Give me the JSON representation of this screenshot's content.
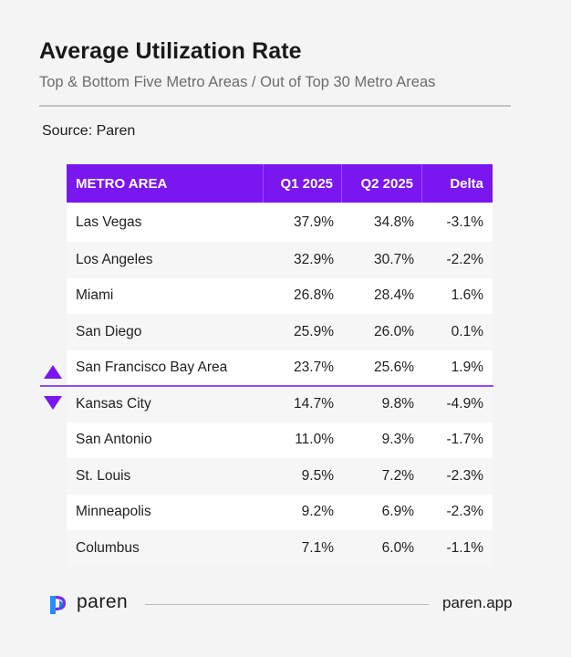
{
  "header": {
    "title": "Average Utilization Rate",
    "subtitle": "Top & Bottom Five Metro Areas / Out of Top 30 Metro Areas",
    "source": "Source: Paren"
  },
  "colors": {
    "accent": "#7a16f0",
    "header_text": "#ffffff",
    "row_alt": "#ffffff",
    "row_plain": "#f6f6f6"
  },
  "icons": {
    "top_marker": "triangle-up-icon",
    "bottom_marker": "triangle-down-icon",
    "brand": "paren-logo-icon"
  },
  "chart_data": {
    "type": "table",
    "columns": [
      "METRO AREA",
      "Q1 2025",
      "Q2 2025",
      "Delta"
    ],
    "rows": [
      [
        "Las Vegas",
        "37.9%",
        "34.8%",
        "-3.1%"
      ],
      [
        "Los Angeles",
        "32.9%",
        "30.7%",
        "-2.2%"
      ],
      [
        "Miami",
        "26.8%",
        "28.4%",
        "1.6%"
      ],
      [
        "San Diego",
        "25.9%",
        "26.0%",
        "0.1%"
      ],
      [
        "San Francisco Bay Area",
        "23.7%",
        "25.6%",
        "1.9%"
      ],
      [
        "Kansas City",
        "14.7%",
        "9.8%",
        "-4.9%"
      ],
      [
        "San Antonio",
        "11.0%",
        "9.3%",
        "-1.7%"
      ],
      [
        "St. Louis",
        "9.5%",
        "7.2%",
        "-2.3%"
      ],
      [
        "Minneapolis",
        "9.2%",
        "6.9%",
        "-2.3%"
      ],
      [
        "Columbus",
        "7.1%",
        "6.0%",
        "-1.1%"
      ]
    ],
    "top_group_size": 5,
    "bottom_group_size": 5
  },
  "footer": {
    "brand": "paren",
    "url": "paren.app"
  }
}
